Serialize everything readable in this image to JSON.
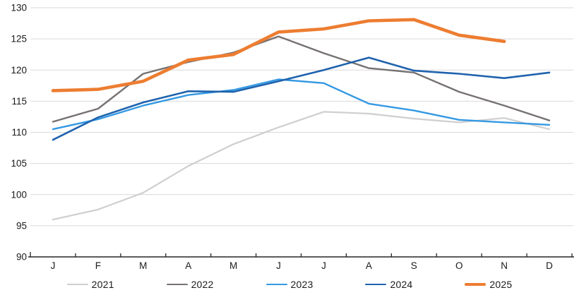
{
  "chart_data": {
    "type": "line",
    "title": "",
    "xlabel": "",
    "ylabel": "",
    "categories": [
      "J",
      "F",
      "M",
      "A",
      "M",
      "J",
      "J",
      "A",
      "S",
      "O",
      "N",
      "D"
    ],
    "y_axis": {
      "min": 90,
      "max": 130,
      "step": 5,
      "ticks": [
        90,
        95,
        100,
        105,
        110,
        115,
        120,
        125,
        130
      ]
    },
    "grid": true,
    "legend_position": "bottom",
    "series": [
      {
        "name": "2021",
        "color": "#d0cece",
        "width": 2.2,
        "values": [
          96.0,
          97.6,
          100.3,
          104.6,
          108.1,
          110.8,
          113.3,
          113.0,
          112.2,
          111.6,
          112.3,
          110.5
        ]
      },
      {
        "name": "2022",
        "color": "#767171",
        "width": 2.4,
        "values": [
          111.7,
          113.8,
          119.4,
          121.3,
          122.8,
          125.4,
          122.7,
          120.3,
          119.6,
          116.5,
          114.3,
          111.9
        ]
      },
      {
        "name": "2023",
        "color": "#3499e3",
        "width": 2.4,
        "values": [
          110.5,
          112.1,
          114.3,
          116.0,
          116.8,
          118.5,
          117.9,
          114.6,
          113.5,
          112.0,
          111.6,
          111.2
        ]
      },
      {
        "name": "2024",
        "color": "#1f62ad",
        "width": 2.6,
        "values": [
          108.8,
          112.4,
          114.8,
          116.6,
          116.5,
          118.2,
          120.0,
          122.0,
          119.9,
          119.4,
          118.7,
          119.6
        ]
      },
      {
        "name": "2025",
        "color": "#ed7d31",
        "width": 4.6,
        "values": [
          116.7,
          116.9,
          118.2,
          121.6,
          122.5,
          126.1,
          126.6,
          127.9,
          128.1,
          125.6,
          124.6,
          null
        ]
      }
    ]
  },
  "style": {
    "gridline_color": "#d9d9d9",
    "axis_line_color": "#262626",
    "tick_label_color": "#1a1a1a",
    "background": "#ffffff"
  }
}
